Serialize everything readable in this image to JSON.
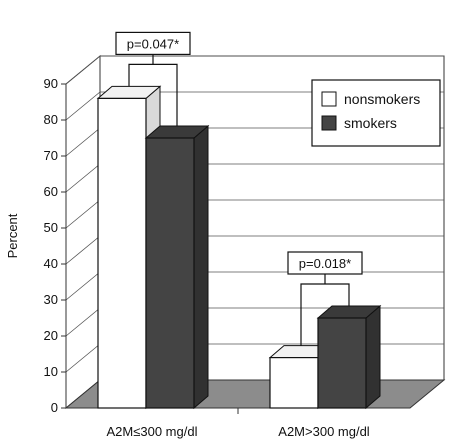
{
  "chart_data": {
    "type": "bar",
    "ylabel": "Percent",
    "xlabel": "",
    "ylim": [
      0,
      90
    ],
    "yticks": [
      0,
      10,
      20,
      30,
      40,
      50,
      60,
      70,
      80,
      90
    ],
    "categories": [
      "A2M≤300 mg/dl",
      "A2M>300 mg/dl"
    ],
    "series": [
      {
        "name": "nonsmokers",
        "values": [
          86,
          14
        ],
        "color": "#ffffff"
      },
      {
        "name": "smokers",
        "values": [
          75,
          25
        ],
        "color": "#444444"
      }
    ],
    "annotations": [
      {
        "category": 0,
        "text": "p=0.047*"
      },
      {
        "category": 1,
        "text": "p=0.018*"
      }
    ],
    "legend_position": "top-right",
    "grid": true,
    "style": "3d"
  }
}
